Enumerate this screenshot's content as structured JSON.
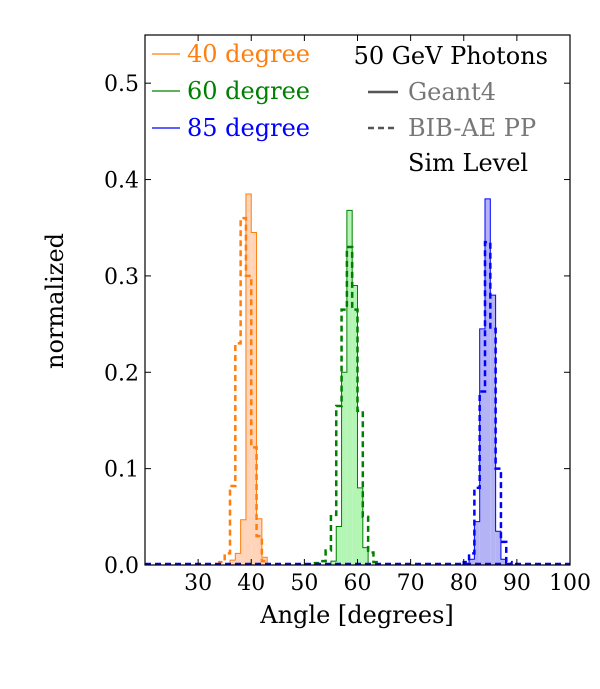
{
  "chart_data": {
    "type": "histogram",
    "title": "50 GeV Photons",
    "xlabel": "Angle [degrees]",
    "ylabel": "normalized",
    "xlim": [
      20,
      100
    ],
    "ylim": [
      0,
      0.55
    ],
    "xticks": [
      30,
      40,
      50,
      60,
      70,
      80,
      90,
      100
    ],
    "yticks": [
      0.0,
      0.1,
      0.2,
      0.3,
      0.4,
      0.5
    ],
    "xtick_labels": [
      "30",
      "40",
      "50",
      "60",
      "70",
      "80",
      "90",
      "100"
    ],
    "ytick_labels": [
      "0.0",
      "0.1",
      "0.2",
      "0.3",
      "0.4",
      "0.5"
    ],
    "bin_width": 1,
    "series": [
      {
        "name": "40 degree",
        "color": "#ff7f0e",
        "fill": "#ffd4b8",
        "geant4": {
          "x0": 36,
          "values": [
            0.005,
            0.012,
            0.047,
            0.385,
            0.345,
            0.048,
            0.008
          ]
        },
        "bibae": {
          "x0": 34,
          "values": [
            0.003,
            0.012,
            0.082,
            0.23,
            0.36,
            0.3,
            0.122,
            0.03,
            0.004
          ]
        }
      },
      {
        "name": "60 degree",
        "color": "#008000",
        "fill": "#b3f5b3",
        "geant4": {
          "x0": 55,
          "values": [
            0.004,
            0.04,
            0.2,
            0.368,
            0.29,
            0.08,
            0.018
          ]
        },
        "bibae": {
          "x0": 52,
          "values": [
            0.002,
            0.004,
            0.015,
            0.052,
            0.165,
            0.265,
            0.33,
            0.265,
            0.16,
            0.05,
            0.013,
            0.003
          ]
        }
      },
      {
        "name": "85 degree",
        "color": "#0000ff",
        "fill": "#b3b3f5",
        "geant4": {
          "x0": 81,
          "values": [
            0.006,
            0.045,
            0.245,
            0.38,
            0.28,
            0.035,
            0.006
          ]
        },
        "bibae": {
          "x0": 80,
          "values": [
            0.003,
            0.012,
            0.08,
            0.18,
            0.335,
            0.245,
            0.1,
            0.024,
            0.003
          ]
        }
      }
    ],
    "legend_angles": {
      "position": "top-left",
      "entries": [
        "40 degree",
        "60 degree",
        "85 degree"
      ]
    },
    "legend_styles": {
      "position": "top-right",
      "entries": [
        {
          "label": "Geant4",
          "style": "solid",
          "color": "#777777"
        },
        {
          "label": "BIB-AE PP",
          "style": "dashed",
          "color": "#777777"
        }
      ],
      "note": "Sim Level"
    }
  }
}
